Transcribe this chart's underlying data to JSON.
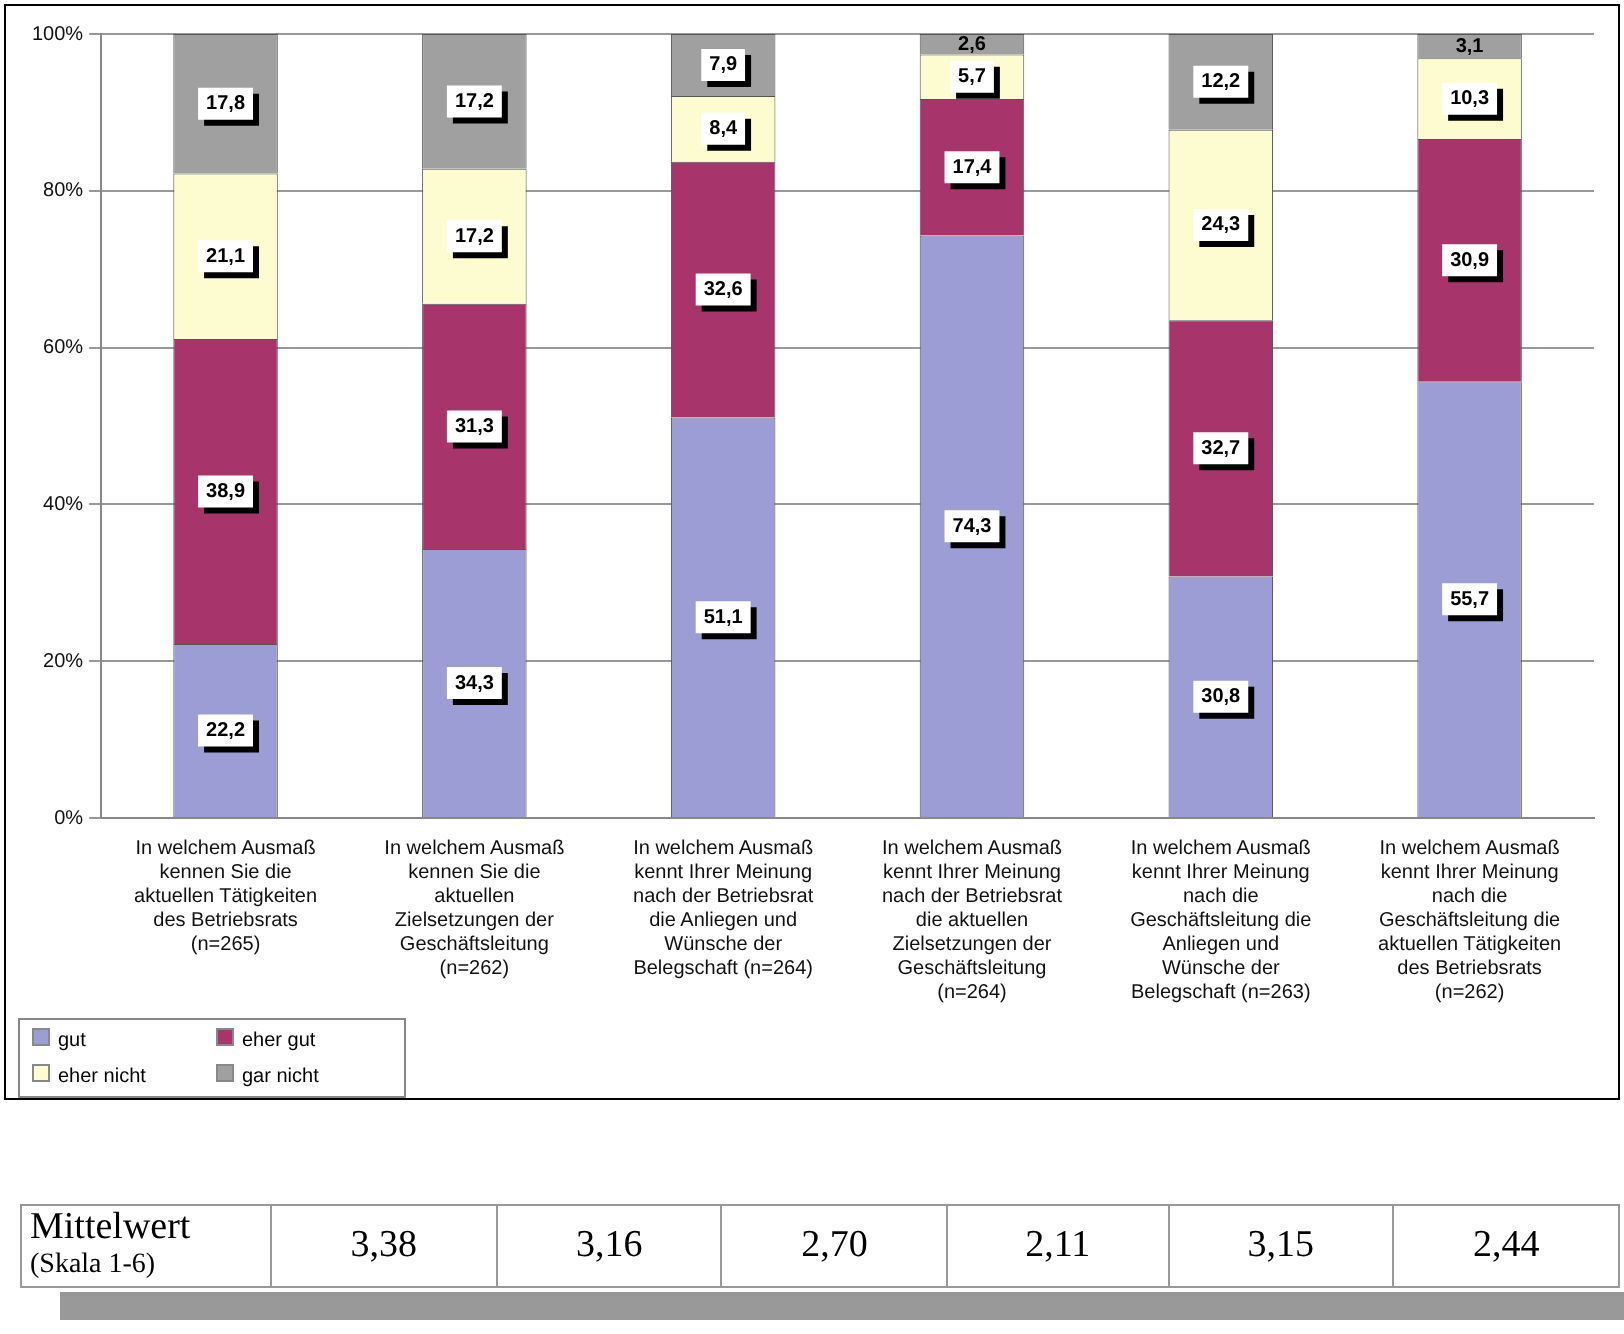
{
  "chart_data": {
    "type": "bar",
    "stacked": true,
    "categories": [
      "In welchem Ausmaß kennen Sie die aktuellen Tätigkeiten des Betriebsrats (n=265)",
      "In welchem Ausmaß kennen Sie die aktuellen Zielsetzungen der Geschäftsleitung (n=262)",
      "In welchem Ausmaß kennt Ihrer Meinung nach der Betriebsrat die Anliegen und Wünsche der Belegschaft (n=264)",
      "In welchem Ausmaß kennt Ihrer Meinung nach der Betriebsrat die aktuellen Zielsetzungen der Geschäftsleitung (n=264)",
      "In welchem Ausmaß kennt Ihrer Meinung nach die Geschäftsleitung die Anliegen und Wünsche der Belegschaft (n=263)",
      "In welchem Ausmaß kennt Ihrer Meinung nach die Geschäftsleitung die aktuellen Tätigkeiten des Betriebsrats (n=262)"
    ],
    "series": [
      {
        "name": "gut",
        "color": "#9d9dd6",
        "values": [
          22.2,
          34.3,
          51.1,
          74.3,
          30.8,
          55.7
        ],
        "value_labels": [
          "22,2",
          "34,3",
          "51,1",
          "74,3",
          "30,8",
          "55,7"
        ]
      },
      {
        "name": "eher gut",
        "color": "#a8346c",
        "values": [
          38.9,
          31.3,
          32.6,
          17.4,
          32.7,
          30.9
        ],
        "value_labels": [
          "38,9",
          "31,3",
          "32,6",
          "17,4",
          "32,7",
          "30,9"
        ]
      },
      {
        "name": "eher nicht",
        "color": "#fcfcd0",
        "values": [
          21.1,
          17.2,
          8.4,
          5.7,
          24.3,
          10.3
        ],
        "value_labels": [
          "21,1",
          "17,2",
          "8,4",
          "5,7",
          "24,3",
          "10,3"
        ]
      },
      {
        "name": "gar nicht",
        "color": "#a0a0a0",
        "values": [
          17.8,
          17.2,
          7.9,
          2.6,
          12.2,
          3.1
        ],
        "value_labels": [
          "17,8",
          "17,2",
          "7,9",
          "2,6",
          "12,2",
          "3,1"
        ]
      }
    ],
    "ylim": [
      0,
      100
    ],
    "yticks": [
      {
        "value": 0,
        "label": "0%"
      },
      {
        "value": 20,
        "label": "20%"
      },
      {
        "value": 40,
        "label": "40%"
      },
      {
        "value": 60,
        "label": "60%"
      },
      {
        "value": 80,
        "label": "80%"
      },
      {
        "value": 100,
        "label": "100%"
      }
    ],
    "grid": "y",
    "legend": "bottom left",
    "annotations": [
      "Mittelwert (Skala 1-6)",
      "3,38",
      "3,16",
      "2,70",
      "2,11",
      "3,15",
      "2,44"
    ]
  }
}
